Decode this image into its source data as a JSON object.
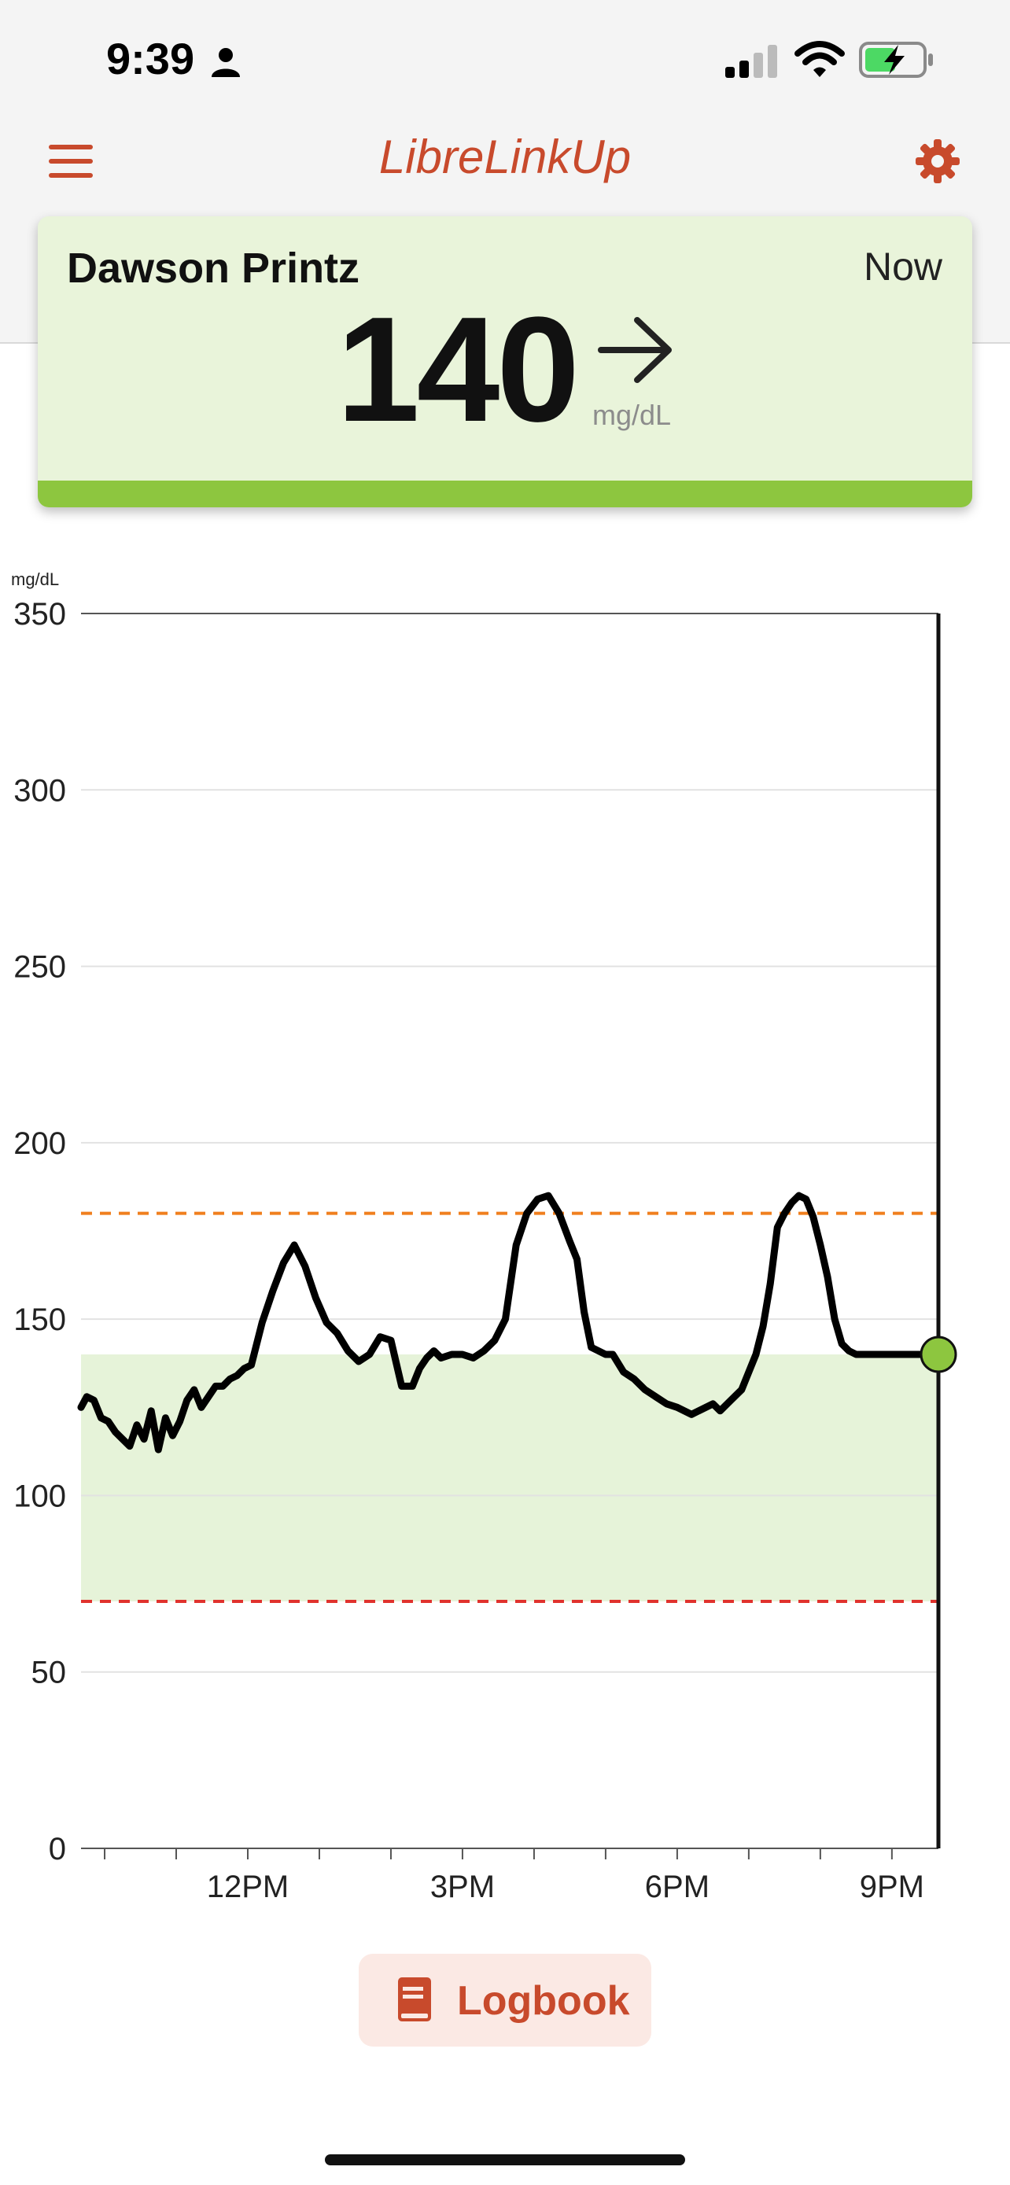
{
  "status_bar": {
    "time": "9:39"
  },
  "header": {
    "app_title": "LibreLinkUp"
  },
  "card": {
    "patient_name": "Dawson Printz",
    "time_label": "Now",
    "glucose_value": "140",
    "unit": "mg/dL",
    "trend": "steady"
  },
  "colors": {
    "brand": "#c84a2c",
    "in_range_green": "#8dc63f",
    "card_bg": "#e9f4da",
    "high_line": "#f07f1e",
    "low_line": "#e0322d"
  },
  "chart_data": {
    "type": "line",
    "ylabel": "mg/dL",
    "ylim": [
      0,
      350
    ],
    "yticks": [
      0,
      50,
      100,
      150,
      200,
      250,
      300,
      350
    ],
    "x_ticks": [
      {
        "x": 12,
        "label": "12PM"
      },
      {
        "x": 15,
        "label": "3PM"
      },
      {
        "x": 18,
        "label": "6PM"
      },
      {
        "x": 21,
        "label": "9PM"
      }
    ],
    "xlim": [
      9.67,
      21.65
    ],
    "target_range": [
      70,
      140
    ],
    "high_threshold": 180,
    "low_threshold": 70,
    "current": {
      "x": 21.65,
      "y": 140
    },
    "series": [
      {
        "x": [
          9.67,
          9.75,
          9.85,
          9.95,
          10.05,
          10.15,
          10.25,
          10.35,
          10.45,
          10.55,
          10.65,
          10.75,
          10.85,
          10.95,
          11.05,
          11.15,
          11.25,
          11.35,
          11.45,
          11.55,
          11.65,
          11.75,
          11.85,
          11.95,
          12.05,
          12.2,
          12.35,
          12.5,
          12.65,
          12.8,
          12.95,
          13.1,
          13.25,
          13.4,
          13.55,
          13.7,
          13.85,
          14.0,
          14.15,
          14.3,
          14.4,
          14.5,
          14.6,
          14.7,
          14.85,
          15.0,
          15.15,
          15.3,
          15.45,
          15.6,
          15.75,
          15.9,
          16.05,
          16.2,
          16.35,
          16.5,
          16.6,
          16.7,
          16.8,
          16.9,
          17.0,
          17.1,
          17.25,
          17.4,
          17.55,
          17.7,
          17.85,
          18.0,
          18.1,
          18.2,
          18.3,
          18.4,
          18.5,
          18.6,
          18.75,
          18.9,
          19.0,
          19.1,
          19.2,
          19.3,
          19.4,
          19.5,
          19.6,
          19.7,
          19.8,
          19.9,
          20.0,
          20.1,
          20.2,
          20.3,
          20.4,
          20.5,
          20.6,
          20.7,
          20.8,
          20.9,
          21.0,
          21.1,
          21.2,
          21.3,
          21.4,
          21.5,
          21.65
        ],
        "y": [
          125,
          128,
          127,
          122,
          121,
          118,
          116,
          114,
          120,
          116,
          124,
          113,
          122,
          117,
          121,
          127,
          130,
          125,
          128,
          131,
          131,
          133,
          134,
          136,
          137,
          149,
          158,
          166,
          171,
          165,
          156,
          149,
          146,
          141,
          138,
          140,
          145,
          144,
          131,
          131,
          136,
          139,
          141,
          139,
          140,
          140,
          139,
          141,
          144,
          150,
          171,
          180,
          184,
          185,
          180,
          172,
          167,
          152,
          142,
          141,
          140,
          140,
          135,
          133,
          130,
          128,
          126,
          125,
          124,
          123,
          124,
          125,
          126,
          124,
          127,
          130,
          135,
          140,
          148,
          160,
          176,
          180,
          183,
          185,
          184,
          179,
          171,
          162,
          150,
          143,
          141,
          140,
          140,
          140,
          140,
          140,
          140,
          140,
          140,
          140,
          140,
          140,
          140
        ]
      }
    ]
  },
  "logbook_button": {
    "label": "Logbook"
  }
}
